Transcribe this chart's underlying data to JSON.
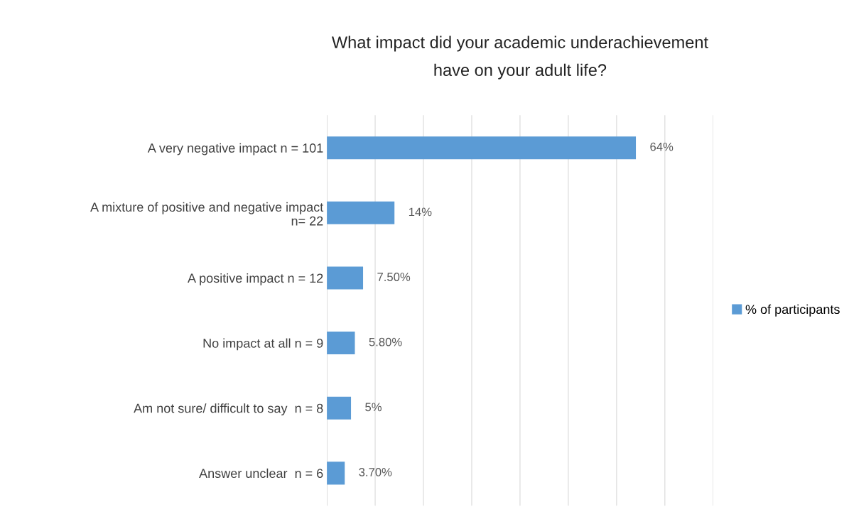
{
  "chart_data": {
    "type": "bar",
    "orientation": "horizontal",
    "title": "What impact did your academic underachievement\nhave on your adult life?",
    "categories": [
      "A very negative impact n = 101",
      "A mixture of positive and negative impact\nn= 22",
      "A positive impact n = 12",
      "No impact at all n = 9",
      "Am not sure/ difficult to say  n = 8",
      "Answer unclear  n = 6"
    ],
    "series": [
      {
        "name": "% of participants",
        "color": "#5b9bd5",
        "values": [
          64,
          14,
          7.5,
          5.8,
          5,
          3.7
        ],
        "value_labels": [
          "64%",
          "14%",
          "7.50%",
          "5.80%",
          "5%",
          "3.70%"
        ]
      }
    ],
    "xlim": [
      0,
      80
    ],
    "xticks": [
      {
        "value": 0,
        "label": null
      },
      {
        "value": 10,
        "label": null
      },
      {
        "value": 20,
        "label": null
      },
      {
        "value": 30,
        "label": null
      },
      {
        "value": 40,
        "label": null
      },
      {
        "value": 50,
        "label": null
      },
      {
        "value": 60,
        "label": null
      },
      {
        "value": 70,
        "label": null
      },
      {
        "value": 80,
        "label": null
      }
    ],
    "grid": "x",
    "legend": "right",
    "tick_labels": "y"
  }
}
